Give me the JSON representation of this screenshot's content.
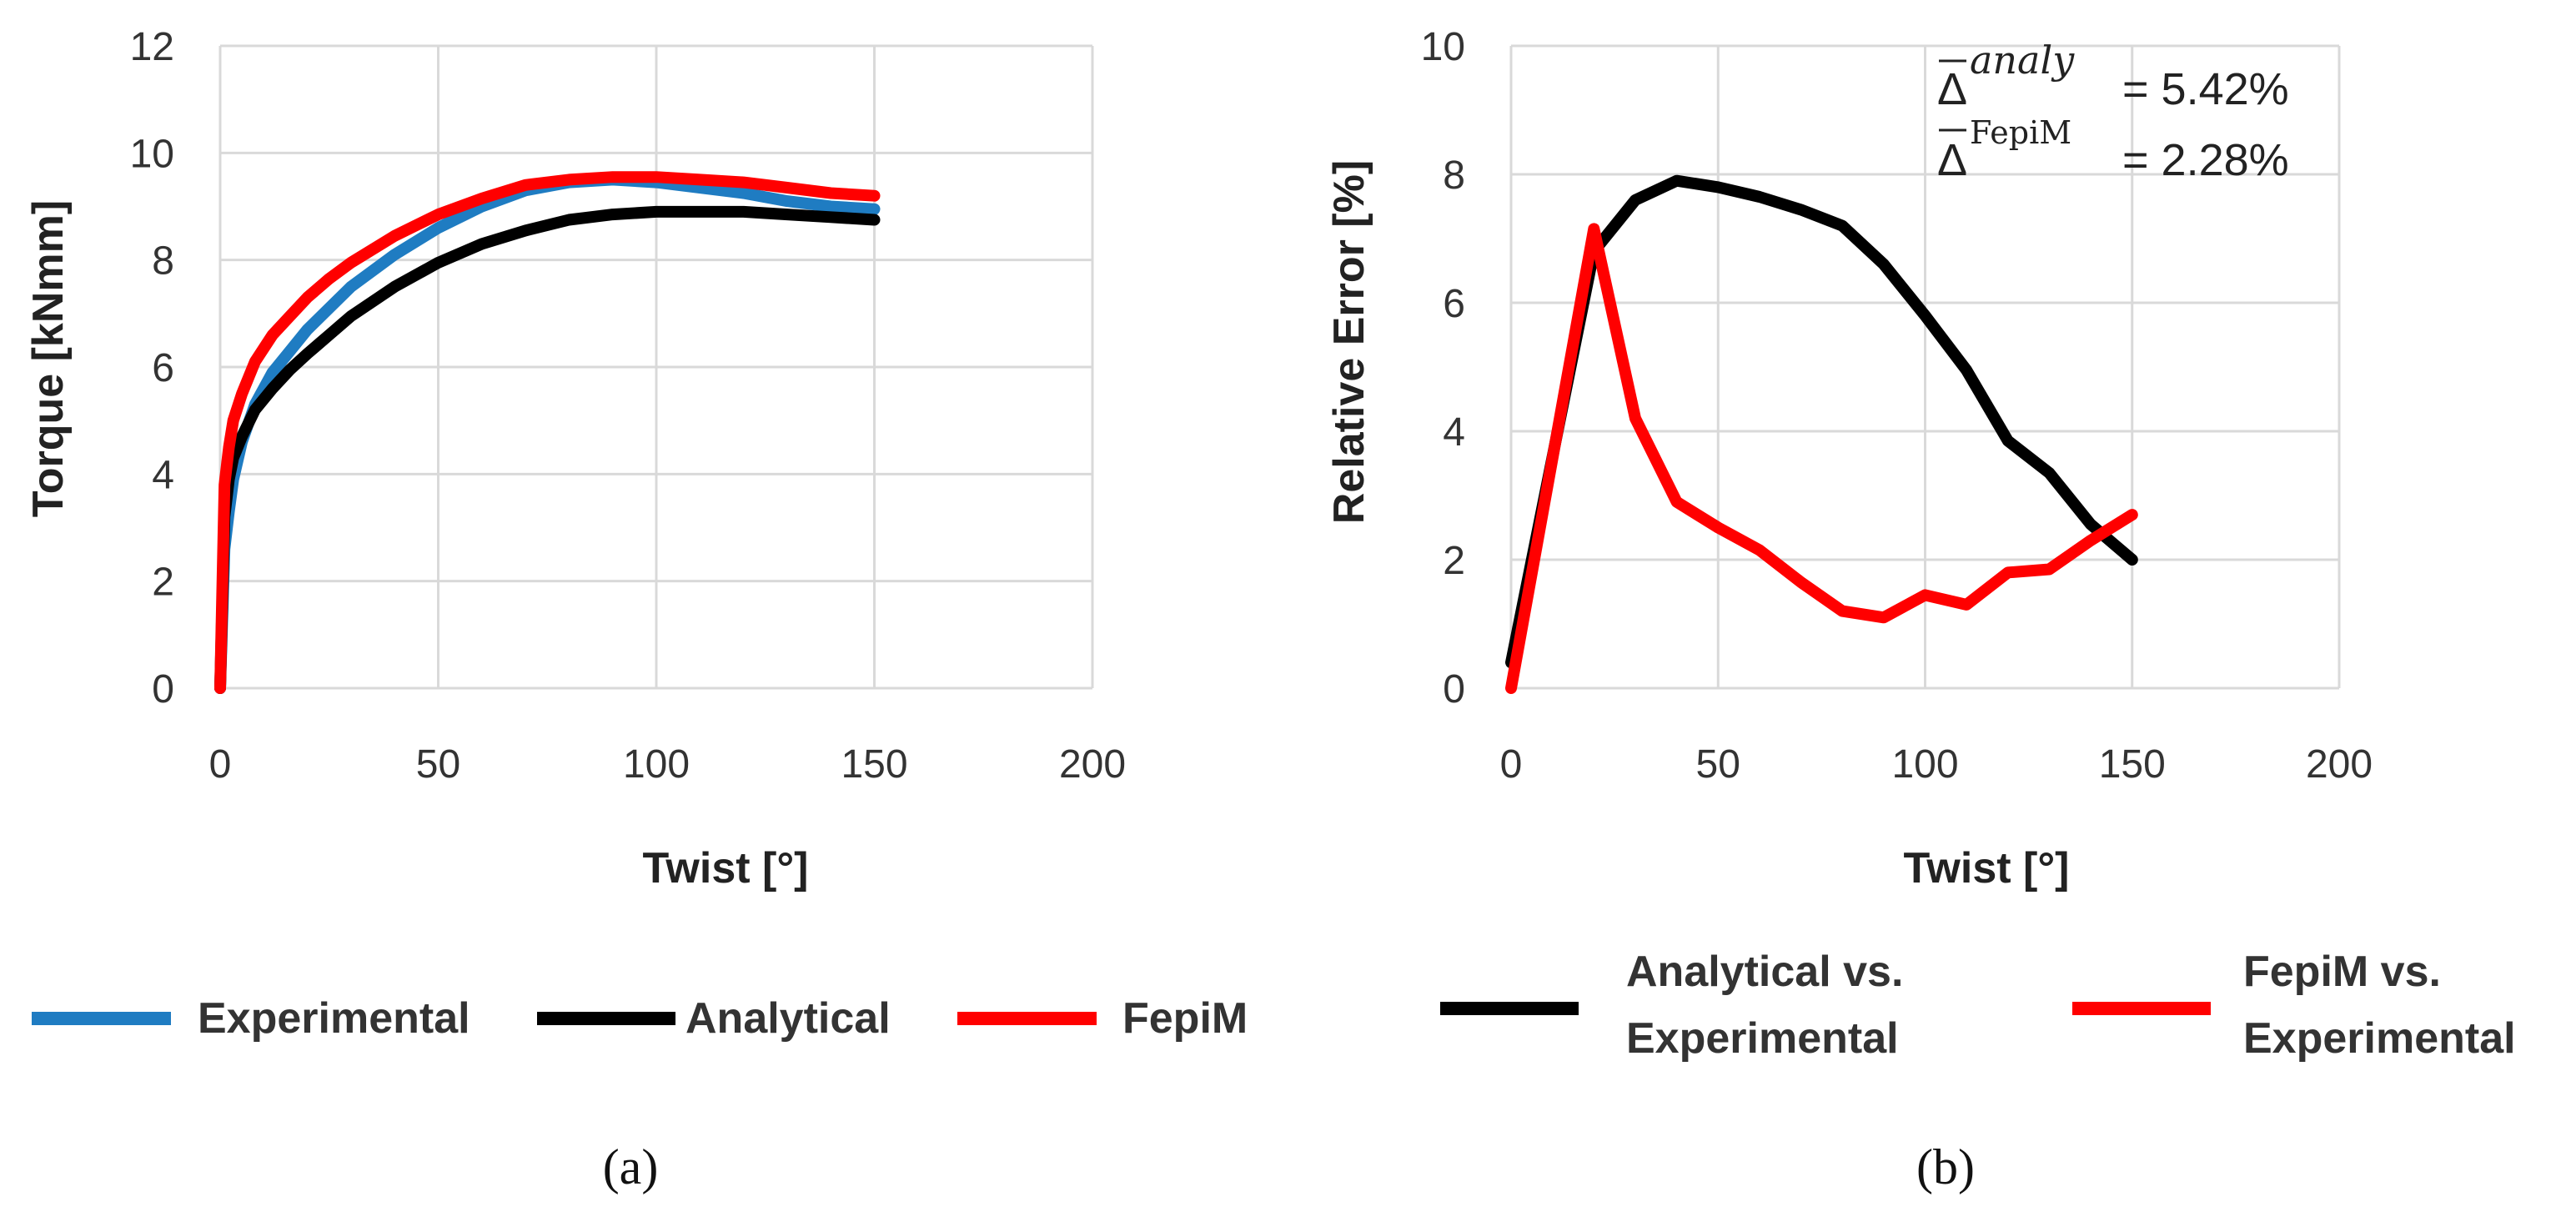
{
  "chart_data": [
    {
      "type": "line",
      "panel_label": "(a)",
      "xlabel": "Twist [°]",
      "ylabel": "Torque [kNmm]",
      "xlim": [
        0,
        200
      ],
      "ylim": [
        0,
        12
      ],
      "xticks": [
        "0",
        "50",
        "100",
        "150",
        "200"
      ],
      "yticks": [
        "0",
        "2",
        "4",
        "6",
        "8",
        "10",
        "12"
      ],
      "grid": true,
      "legend_position": "bottom",
      "series": [
        {
          "name": "Experimental",
          "color": "#1f7cc2",
          "x": [
            0,
            1,
            2,
            3,
            5,
            8,
            12,
            16,
            20,
            25,
            30,
            40,
            50,
            60,
            70,
            80,
            90,
            100,
            110,
            120,
            130,
            140,
            150
          ],
          "y": [
            0,
            2.6,
            3.3,
            3.9,
            4.6,
            5.3,
            5.9,
            6.3,
            6.7,
            7.1,
            7.5,
            8.1,
            8.6,
            9.0,
            9.3,
            9.45,
            9.5,
            9.45,
            9.35,
            9.25,
            9.1,
            9.0,
            8.95
          ]
        },
        {
          "name": "Analytical",
          "color": "#000000",
          "x": [
            0,
            1,
            2,
            3,
            5,
            8,
            12,
            16,
            20,
            25,
            30,
            40,
            50,
            60,
            70,
            80,
            90,
            100,
            110,
            120,
            130,
            140,
            150
          ],
          "y": [
            0,
            3.2,
            3.9,
            4.3,
            4.7,
            5.2,
            5.6,
            5.95,
            6.25,
            6.6,
            6.95,
            7.5,
            7.95,
            8.3,
            8.55,
            8.75,
            8.85,
            8.9,
            8.9,
            8.9,
            8.85,
            8.8,
            8.75
          ]
        },
        {
          "name": "FepiM",
          "color": "#ff0000",
          "x": [
            0,
            1,
            2,
            3,
            5,
            8,
            12,
            16,
            20,
            25,
            30,
            40,
            50,
            60,
            70,
            80,
            90,
            100,
            110,
            120,
            130,
            140,
            150
          ],
          "y": [
            0,
            3.8,
            4.5,
            5.0,
            5.5,
            6.1,
            6.6,
            6.95,
            7.3,
            7.65,
            7.95,
            8.45,
            8.85,
            9.15,
            9.4,
            9.5,
            9.55,
            9.55,
            9.5,
            9.45,
            9.35,
            9.25,
            9.2
          ]
        }
      ]
    },
    {
      "type": "line",
      "panel_label": "(b)",
      "xlabel": "Twist [°]",
      "ylabel": "Relative Error [%]",
      "xlim": [
        0,
        200
      ],
      "ylim": [
        0,
        10
      ],
      "xticks": [
        "0",
        "50",
        "100",
        "150",
        "200"
      ],
      "yticks": [
        "0",
        "2",
        "4",
        "6",
        "8",
        "10"
      ],
      "grid": true,
      "legend_position": "bottom",
      "annotations": [
        {
          "sup": "analy",
          "value": "= 5.42%"
        },
        {
          "sup": "FepiM",
          "value": "= 2.28%"
        }
      ],
      "series": [
        {
          "name_line1": "Analytical vs.",
          "name_line2": "Experimental",
          "color": "#000000",
          "x": [
            0,
            20,
            30,
            40,
            50,
            60,
            70,
            80,
            90,
            100,
            110,
            120,
            130,
            140,
            150
          ],
          "y": [
            0.4,
            6.8,
            7.6,
            7.9,
            7.8,
            7.65,
            7.45,
            7.2,
            6.6,
            5.8,
            4.95,
            3.85,
            3.35,
            2.55,
            2.0
          ]
        },
        {
          "name_line1": "FepiM vs.",
          "name_line2": "Experimental",
          "color": "#ff0000",
          "x": [
            0,
            20,
            30,
            40,
            50,
            60,
            70,
            80,
            90,
            100,
            110,
            120,
            130,
            140,
            150
          ],
          "y": [
            0,
            7.15,
            4.2,
            2.9,
            2.5,
            2.15,
            1.65,
            1.2,
            1.1,
            1.45,
            1.3,
            1.8,
            1.85,
            2.3,
            2.7
          ]
        }
      ]
    }
  ]
}
